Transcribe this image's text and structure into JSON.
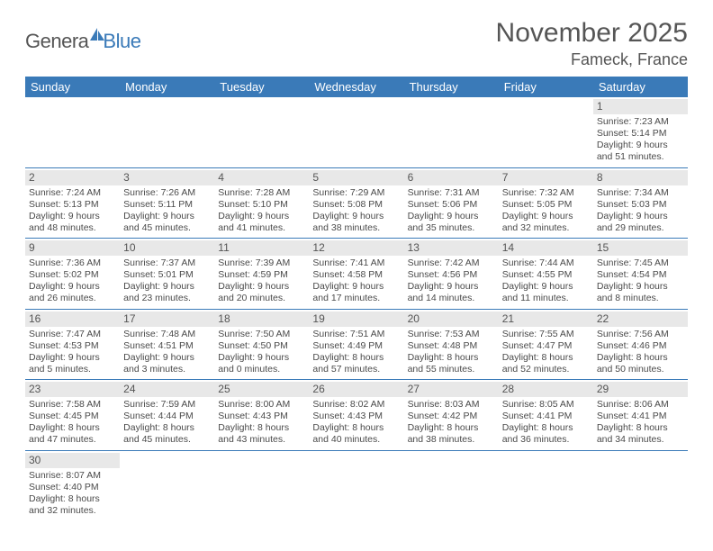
{
  "logo": {
    "word1": "Genera",
    "word2": "Blue"
  },
  "title": "November 2025",
  "location": "Fameck, France",
  "colors": {
    "header_bg": "#3a7ab8",
    "header_text": "#ffffff",
    "daynum_bg": "#e8e8e8",
    "row_border": "#3a7ab8",
    "body_text": "#4a4a4a"
  },
  "weekdays": [
    "Sunday",
    "Monday",
    "Tuesday",
    "Wednesday",
    "Thursday",
    "Friday",
    "Saturday"
  ],
  "weeks": [
    [
      null,
      null,
      null,
      null,
      null,
      null,
      {
        "n": "1",
        "sr": "Sunrise: 7:23 AM",
        "ss": "Sunset: 5:14 PM",
        "dl": "Daylight: 9 hours and 51 minutes."
      }
    ],
    [
      {
        "n": "2",
        "sr": "Sunrise: 7:24 AM",
        "ss": "Sunset: 5:13 PM",
        "dl": "Daylight: 9 hours and 48 minutes."
      },
      {
        "n": "3",
        "sr": "Sunrise: 7:26 AM",
        "ss": "Sunset: 5:11 PM",
        "dl": "Daylight: 9 hours and 45 minutes."
      },
      {
        "n": "4",
        "sr": "Sunrise: 7:28 AM",
        "ss": "Sunset: 5:10 PM",
        "dl": "Daylight: 9 hours and 41 minutes."
      },
      {
        "n": "5",
        "sr": "Sunrise: 7:29 AM",
        "ss": "Sunset: 5:08 PM",
        "dl": "Daylight: 9 hours and 38 minutes."
      },
      {
        "n": "6",
        "sr": "Sunrise: 7:31 AM",
        "ss": "Sunset: 5:06 PM",
        "dl": "Daylight: 9 hours and 35 minutes."
      },
      {
        "n": "7",
        "sr": "Sunrise: 7:32 AM",
        "ss": "Sunset: 5:05 PM",
        "dl": "Daylight: 9 hours and 32 minutes."
      },
      {
        "n": "8",
        "sr": "Sunrise: 7:34 AM",
        "ss": "Sunset: 5:03 PM",
        "dl": "Daylight: 9 hours and 29 minutes."
      }
    ],
    [
      {
        "n": "9",
        "sr": "Sunrise: 7:36 AM",
        "ss": "Sunset: 5:02 PM",
        "dl": "Daylight: 9 hours and 26 minutes."
      },
      {
        "n": "10",
        "sr": "Sunrise: 7:37 AM",
        "ss": "Sunset: 5:01 PM",
        "dl": "Daylight: 9 hours and 23 minutes."
      },
      {
        "n": "11",
        "sr": "Sunrise: 7:39 AM",
        "ss": "Sunset: 4:59 PM",
        "dl": "Daylight: 9 hours and 20 minutes."
      },
      {
        "n": "12",
        "sr": "Sunrise: 7:41 AM",
        "ss": "Sunset: 4:58 PM",
        "dl": "Daylight: 9 hours and 17 minutes."
      },
      {
        "n": "13",
        "sr": "Sunrise: 7:42 AM",
        "ss": "Sunset: 4:56 PM",
        "dl": "Daylight: 9 hours and 14 minutes."
      },
      {
        "n": "14",
        "sr": "Sunrise: 7:44 AM",
        "ss": "Sunset: 4:55 PM",
        "dl": "Daylight: 9 hours and 11 minutes."
      },
      {
        "n": "15",
        "sr": "Sunrise: 7:45 AM",
        "ss": "Sunset: 4:54 PM",
        "dl": "Daylight: 9 hours and 8 minutes."
      }
    ],
    [
      {
        "n": "16",
        "sr": "Sunrise: 7:47 AM",
        "ss": "Sunset: 4:53 PM",
        "dl": "Daylight: 9 hours and 5 minutes."
      },
      {
        "n": "17",
        "sr": "Sunrise: 7:48 AM",
        "ss": "Sunset: 4:51 PM",
        "dl": "Daylight: 9 hours and 3 minutes."
      },
      {
        "n": "18",
        "sr": "Sunrise: 7:50 AM",
        "ss": "Sunset: 4:50 PM",
        "dl": "Daylight: 9 hours and 0 minutes."
      },
      {
        "n": "19",
        "sr": "Sunrise: 7:51 AM",
        "ss": "Sunset: 4:49 PM",
        "dl": "Daylight: 8 hours and 57 minutes."
      },
      {
        "n": "20",
        "sr": "Sunrise: 7:53 AM",
        "ss": "Sunset: 4:48 PM",
        "dl": "Daylight: 8 hours and 55 minutes."
      },
      {
        "n": "21",
        "sr": "Sunrise: 7:55 AM",
        "ss": "Sunset: 4:47 PM",
        "dl": "Daylight: 8 hours and 52 minutes."
      },
      {
        "n": "22",
        "sr": "Sunrise: 7:56 AM",
        "ss": "Sunset: 4:46 PM",
        "dl": "Daylight: 8 hours and 50 minutes."
      }
    ],
    [
      {
        "n": "23",
        "sr": "Sunrise: 7:58 AM",
        "ss": "Sunset: 4:45 PM",
        "dl": "Daylight: 8 hours and 47 minutes."
      },
      {
        "n": "24",
        "sr": "Sunrise: 7:59 AM",
        "ss": "Sunset: 4:44 PM",
        "dl": "Daylight: 8 hours and 45 minutes."
      },
      {
        "n": "25",
        "sr": "Sunrise: 8:00 AM",
        "ss": "Sunset: 4:43 PM",
        "dl": "Daylight: 8 hours and 43 minutes."
      },
      {
        "n": "26",
        "sr": "Sunrise: 8:02 AM",
        "ss": "Sunset: 4:43 PM",
        "dl": "Daylight: 8 hours and 40 minutes."
      },
      {
        "n": "27",
        "sr": "Sunrise: 8:03 AM",
        "ss": "Sunset: 4:42 PM",
        "dl": "Daylight: 8 hours and 38 minutes."
      },
      {
        "n": "28",
        "sr": "Sunrise: 8:05 AM",
        "ss": "Sunset: 4:41 PM",
        "dl": "Daylight: 8 hours and 36 minutes."
      },
      {
        "n": "29",
        "sr": "Sunrise: 8:06 AM",
        "ss": "Sunset: 4:41 PM",
        "dl": "Daylight: 8 hours and 34 minutes."
      }
    ],
    [
      {
        "n": "30",
        "sr": "Sunrise: 8:07 AM",
        "ss": "Sunset: 4:40 PM",
        "dl": "Daylight: 8 hours and 32 minutes."
      },
      null,
      null,
      null,
      null,
      null,
      null
    ]
  ]
}
